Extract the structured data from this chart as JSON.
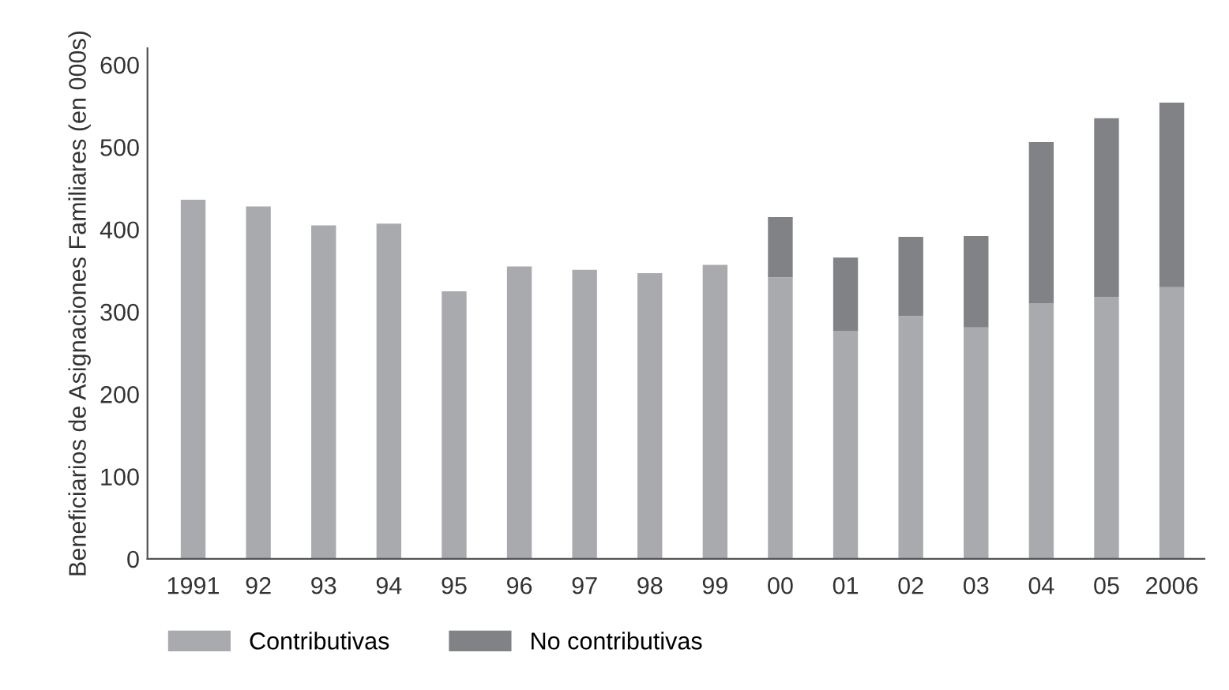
{
  "chart_data": {
    "type": "bar",
    "stacked": true,
    "ylabel": "Beneficiarios de Asignaciones Familiares (en 000s)",
    "categories": [
      "1991",
      "92",
      "93",
      "94",
      "95",
      "96",
      "97",
      "98",
      "99",
      "00",
      "01",
      "02",
      "03",
      "04",
      "05",
      "2006"
    ],
    "series": [
      {
        "name": "Contributivas",
        "color": "#a9aaad",
        "values": [
          436,
          428,
          405,
          407,
          325,
          355,
          351,
          347,
          357,
          342,
          277,
          295,
          281,
          310,
          318,
          330
        ]
      },
      {
        "name": "No contributivas",
        "color": "#818285",
        "values": [
          0,
          0,
          0,
          0,
          0,
          0,
          0,
          0,
          0,
          73,
          89,
          96,
          111,
          196,
          217,
          224
        ]
      }
    ],
    "ylim": [
      0,
      620
    ],
    "yticks": [
      0,
      100,
      200,
      300,
      400,
      500,
      600
    ],
    "grid": false,
    "legend": "bottom"
  }
}
